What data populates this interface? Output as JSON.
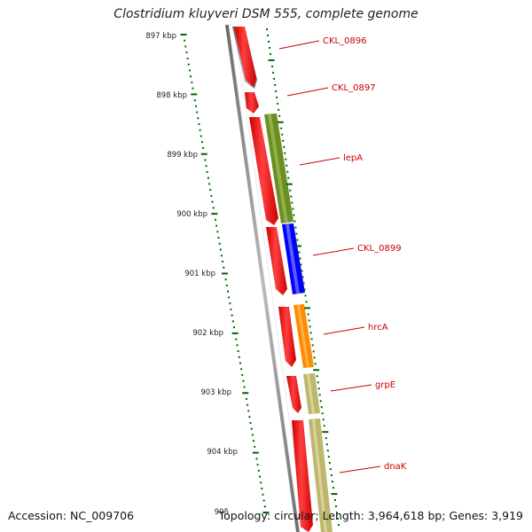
{
  "title": "Clostridium kluyveri DSM 555, complete genome",
  "footer": {
    "accession": "Accession: NC_009706",
    "summary": "Topology: circular; Length: 3,964,618 bp; Genes: 3,919"
  },
  "colors": {
    "forward_gene": "#ff0000",
    "strand_bar": "#888888",
    "tick": "#006600",
    "label": "#cc0000",
    "lepA": "#6b8e23",
    "CKL_0899": "#0000ff",
    "hrcA": "#ff8c00",
    "grpE": "#bdb76b",
    "dnaK": "#bdb76b"
  },
  "scale": {
    "unit": "kbp",
    "labels": [
      "897 kbp",
      "898 kbp",
      "899 kbp",
      "900 kbp",
      "901 kbp",
      "902 kbp",
      "903 kbp",
      "904 kbp",
      "905"
    ]
  },
  "genes": [
    {
      "name": "CKL_0896"
    },
    {
      "name": "CKL_0897"
    },
    {
      "name": "lepA"
    },
    {
      "name": "CKL_0899"
    },
    {
      "name": "hrcA"
    },
    {
      "name": "grpE"
    },
    {
      "name": "dnaK"
    }
  ]
}
